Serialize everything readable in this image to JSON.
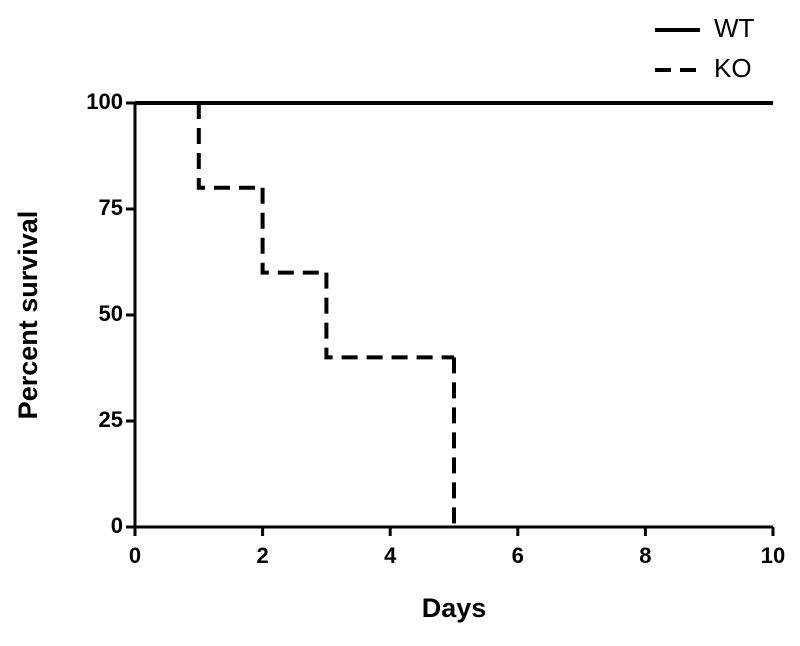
{
  "chart_data": {
    "type": "step",
    "x_label": "Days",
    "y_label": "Percent survival",
    "xlim": [
      0,
      10
    ],
    "xticks": [
      0,
      2,
      4,
      6,
      8,
      10
    ],
    "ylim": [
      0,
      100
    ],
    "yticks": [
      0,
      25,
      50,
      75,
      100
    ],
    "legend": "top-right",
    "series": [
      {
        "name": "WT",
        "color": "#000000",
        "dashed": false,
        "x": [
          0,
          10
        ],
        "values": [
          100,
          100
        ]
      },
      {
        "name": "KO",
        "color": "#000000",
        "dashed": true,
        "x": [
          0,
          1,
          2,
          3,
          5
        ],
        "values": [
          100,
          80,
          60,
          40,
          0
        ]
      }
    ]
  }
}
